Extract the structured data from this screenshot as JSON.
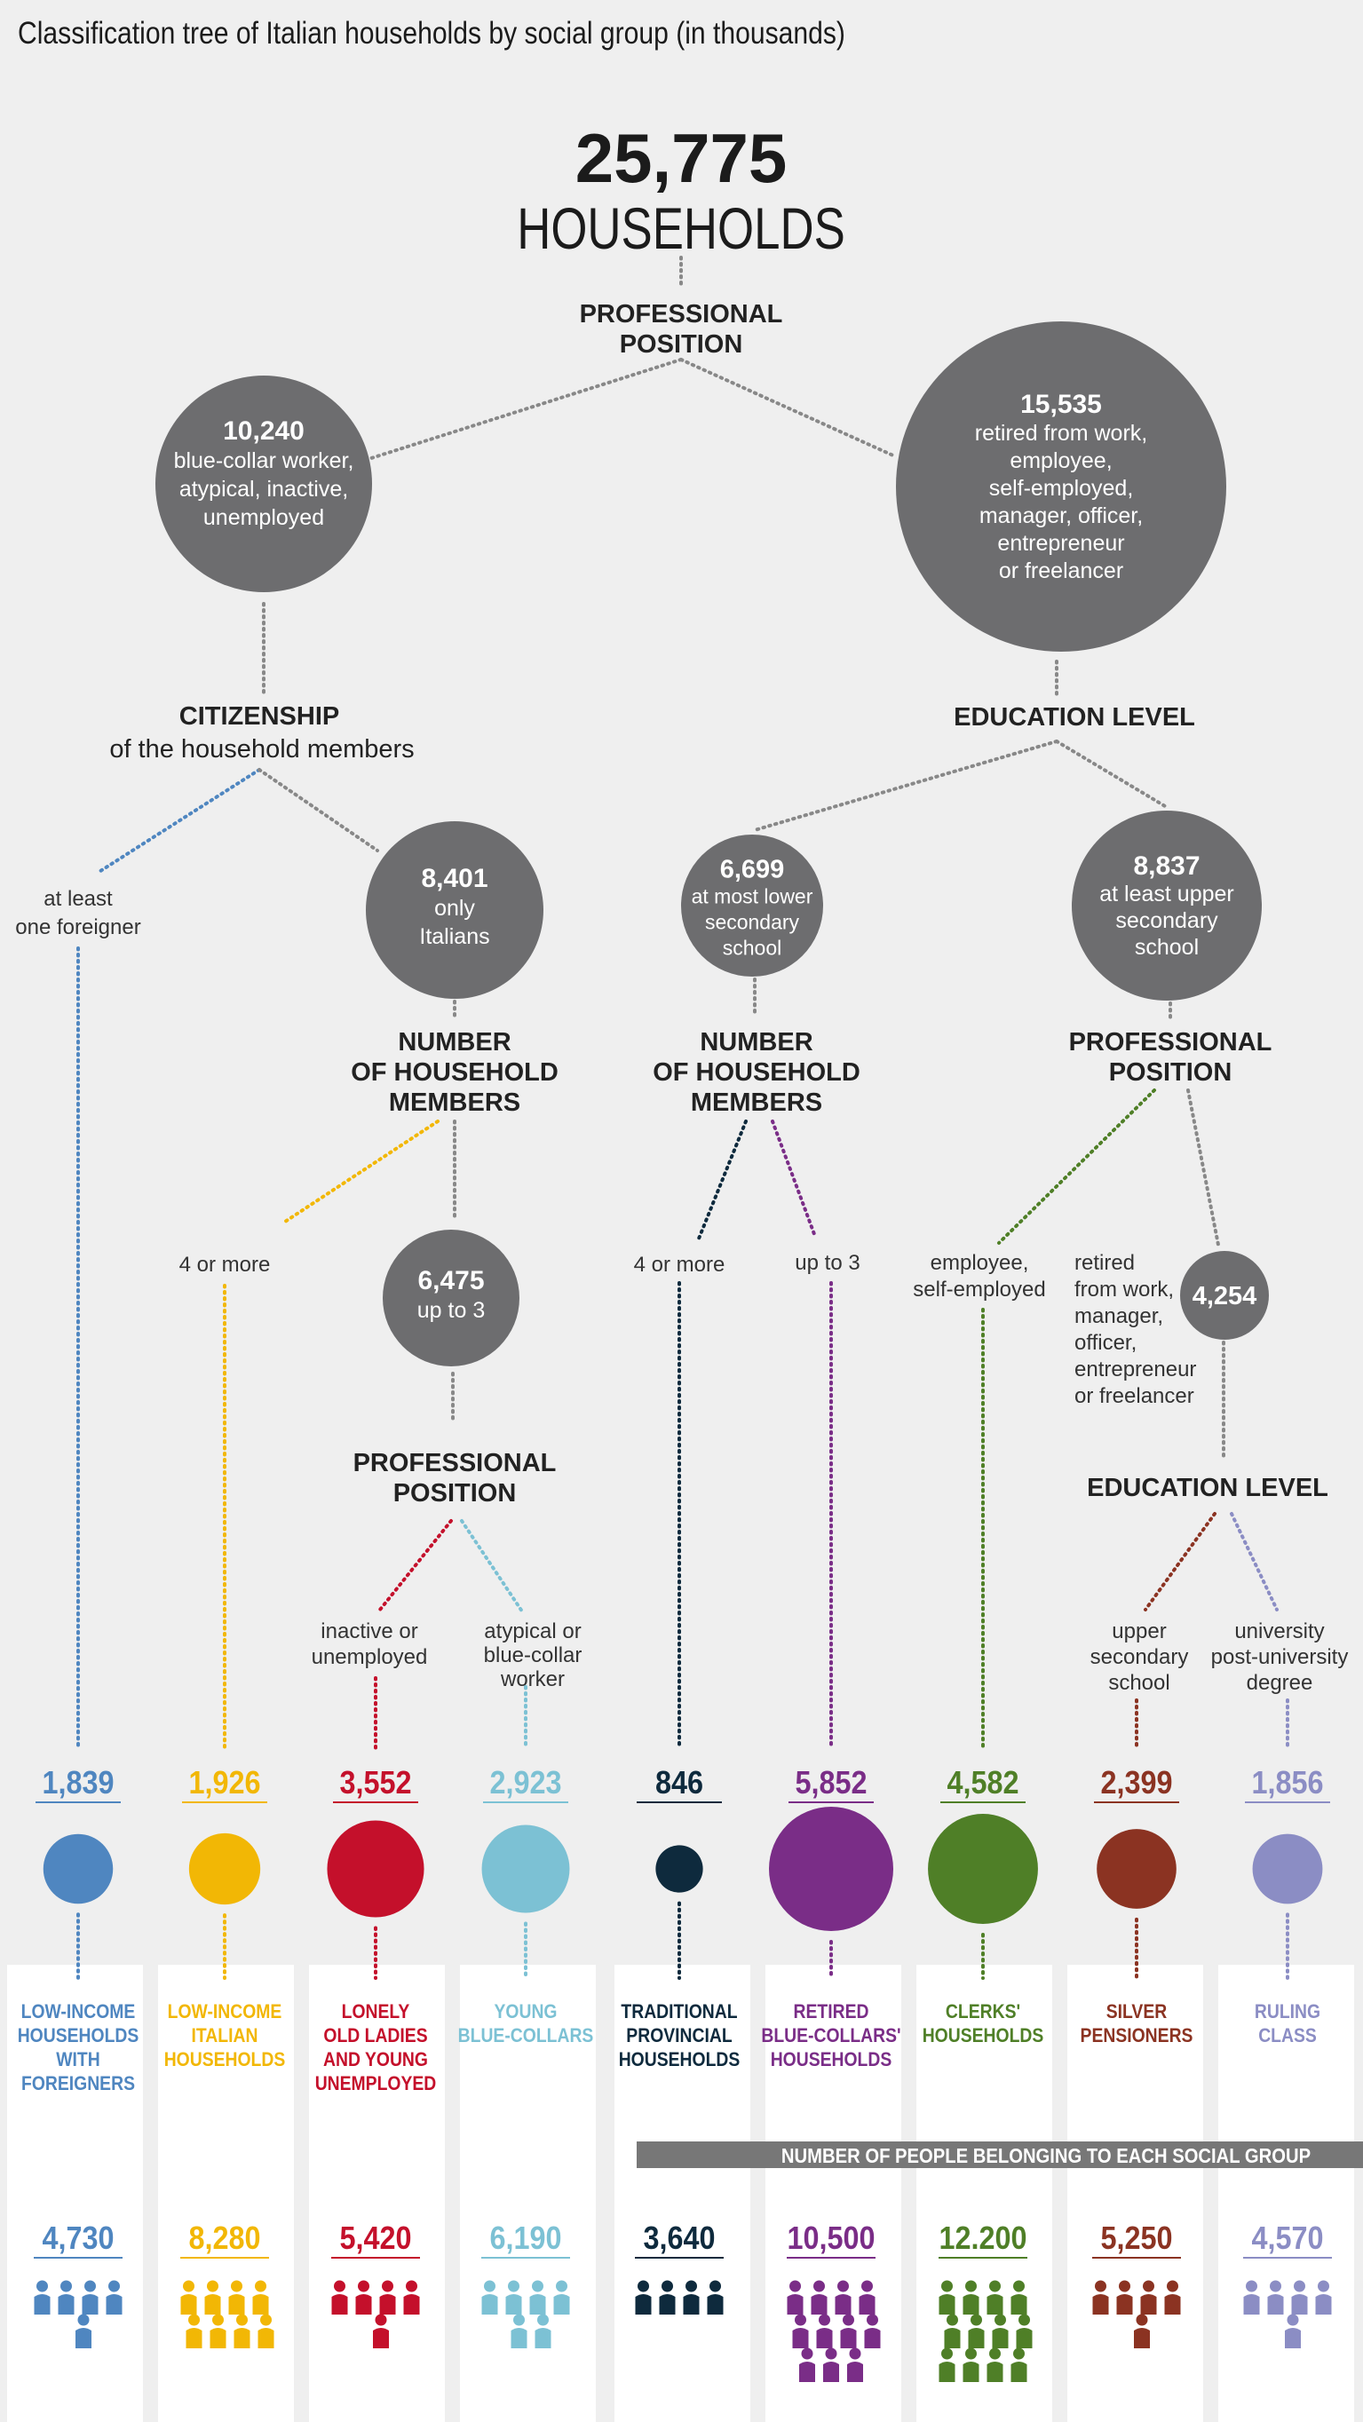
{
  "title": "Classification tree of Italian households by social group (in thousands)",
  "root": {
    "value": "25,775",
    "label": "HOUSEHOLDS"
  },
  "criteria": {
    "professional_position_1": [
      "PROFESSIONAL",
      "POSITION"
    ],
    "citizenship": [
      "CITIZENSHIP",
      "of the household members"
    ],
    "education_level_1": "EDUCATION LEVEL",
    "members_left": [
      "NUMBER",
      "OF HOUSEHOLD",
      "MEMBERS"
    ],
    "members_mid": [
      "NUMBER",
      "OF HOUSEHOLD",
      "MEMBERS"
    ],
    "professional_position_2": [
      "PROFESSIONAL",
      "POSITION"
    ],
    "professional_position_3": [
      "PROFESSIONAL",
      "POSITION"
    ],
    "education_level_2": "EDUCATION LEVEL"
  },
  "nodes": {
    "blue_collar": {
      "value": "10,240",
      "lines": [
        "blue-collar worker,",
        "atypical, inactive,",
        "unemployed"
      ]
    },
    "retired": {
      "value": "15,535",
      "lines": [
        "retired from work,",
        "employee,",
        "self-employed,",
        "manager, officer,",
        "entrepreneur",
        "or freelancer"
      ]
    },
    "only_italians": {
      "value": "8,401",
      "lines": [
        "only",
        "Italians"
      ]
    },
    "lower_secondary": {
      "value": "6,699",
      "lines": [
        "at most lower",
        "secondary",
        "school"
      ]
    },
    "upper_secondary": {
      "value": "8,837",
      "lines": [
        "at least upper",
        "secondary",
        "school"
      ]
    },
    "up_to_3": {
      "value": "6,475",
      "lines": [
        "up to 3"
      ]
    },
    "managers": {
      "value": "4,254",
      "lines": []
    }
  },
  "branch_labels": {
    "foreigner": [
      "at least",
      "one foreigner"
    ],
    "four_more_left": [
      "4 or more"
    ],
    "four_more_mid": [
      "4 or more"
    ],
    "up_to_3_mid": [
      "up to 3"
    ],
    "employee": [
      "employee,",
      "self-employed"
    ],
    "retired_managers": [
      "retired",
      "from work,",
      "manager,",
      "officer,",
      "entrepreneur",
      "or freelancer"
    ],
    "inactive": [
      "inactive or",
      "unemployed"
    ],
    "atypical": [
      "atypical or",
      "blue-collar",
      "worker"
    ],
    "upper_school": [
      "upper",
      "secondary",
      "school"
    ],
    "university": [
      "university",
      "post-university",
      "degree"
    ]
  },
  "groups": [
    {
      "households": "1,839",
      "households_k": 1839,
      "name": [
        "LOW-INCOME",
        "HOUSEHOLDS",
        "WITH",
        "FOREIGNERS"
      ],
      "people": "4,730",
      "color": "#4f86c0"
    },
    {
      "households": "1,926",
      "households_k": 1926,
      "name": [
        "LOW-INCOME",
        "ITALIAN",
        "HOUSEHOLDS"
      ],
      "people": "8,280",
      "color": "#f2b705"
    },
    {
      "households": "3,552",
      "households_k": 3552,
      "name": [
        "LONELY",
        "OLD LADIES",
        "AND YOUNG",
        "UNEMPLOYED"
      ],
      "people": "5,420",
      "color": "#c4102b"
    },
    {
      "households": "2,923",
      "households_k": 2923,
      "name": [
        "YOUNG",
        "BLUE-COLLARS"
      ],
      "people": "6,190",
      "color": "#7cc1d4"
    },
    {
      "households": "846",
      "households_k": 846,
      "name": [
        "TRADITIONAL",
        "PROVINCIAL",
        "HOUSEHOLDS"
      ],
      "people": "3,640",
      "color": "#0e2a3d"
    },
    {
      "households": "5,852",
      "households_k": 5852,
      "name": [
        "RETIRED",
        "BLUE-COLLARS'",
        "HOUSEHOLDS"
      ],
      "people": "10,500",
      "color": "#7a2d87"
    },
    {
      "households": "4,582",
      "households_k": 4582,
      "name": [
        "CLERKS'",
        "HOUSEHOLDS"
      ],
      "people": "12.200",
      "color": "#4f7f27"
    },
    {
      "households": "2,399",
      "households_k": 2399,
      "name": [
        "SILVER",
        "PENSIONERS"
      ],
      "people": "5,250",
      "color": "#8b3322"
    },
    {
      "households": "1,856",
      "households_k": 1856,
      "name": [
        "RULING",
        "CLASS"
      ],
      "people": "4,570",
      "color": "#8b8dc4"
    }
  ],
  "people_banner": "NUMBER OF PEOPLE BELONGING TO EACH SOCIAL GROUP",
  "colors": {
    "node": "#6d6d6f",
    "connector": "#888888",
    "background": "#efefef",
    "panel": "#ffffff",
    "banner": "#777777"
  }
}
